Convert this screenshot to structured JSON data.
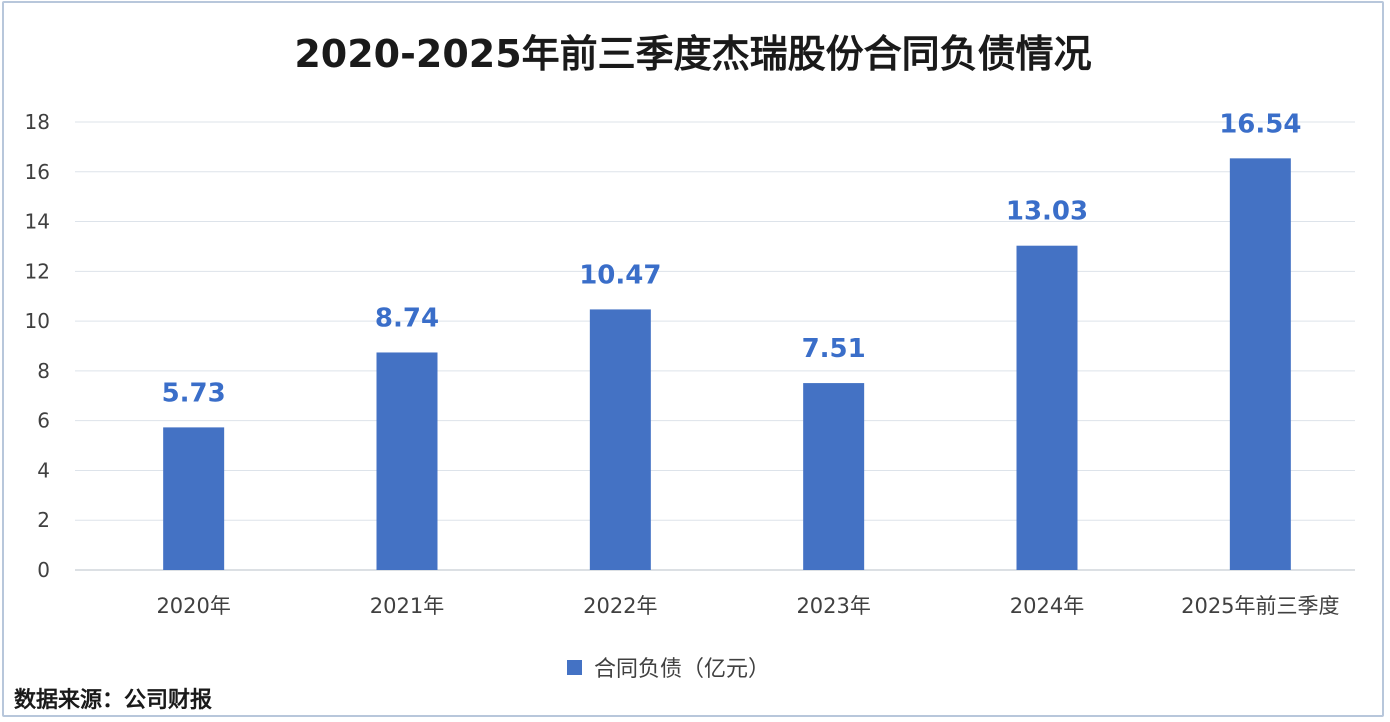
{
  "chart_data": {
    "type": "bar",
    "title": "2020-2025年前三季度杰瑞股份合同负债情况",
    "categories": [
      "2020年",
      "2021年",
      "2022年",
      "2023年",
      "2024年",
      "2025年前三季度"
    ],
    "series": [
      {
        "name": "合同负债（亿元）",
        "values": [
          5.73,
          8.74,
          10.47,
          7.51,
          13.03,
          16.54
        ]
      }
    ],
    "data_labels": [
      "5.73",
      "8.74",
      "10.47",
      "7.51",
      "13.03",
      "16.54"
    ],
    "ylim": [
      0,
      18
    ],
    "yticks": [
      0,
      2,
      4,
      6,
      8,
      10,
      12,
      14,
      16,
      18
    ],
    "grid": true,
    "legend_position": "bottom",
    "bar_color": "#4472c4",
    "label_color": "#3a6ec9"
  },
  "source_note": "数据来源：公司财报"
}
